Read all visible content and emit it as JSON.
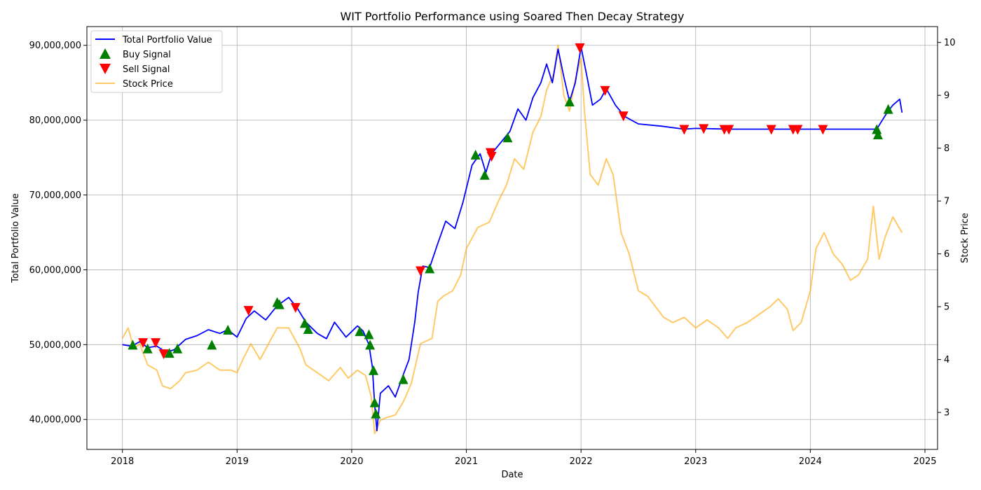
{
  "chart_data": {
    "type": "line",
    "title": "WIT Portfolio Performance using Soared Then Decay Strategy",
    "xlabel": "Date",
    "ylabel_left": "Total Portfolio Value",
    "ylabel_right": "Stock Price",
    "x_range": [
      2017.69,
      2025.11
    ],
    "y_left_range": [
      36000000,
      92500000
    ],
    "y_right_range": [
      2.3,
      10.3
    ],
    "x_ticks": [
      "2018",
      "2019",
      "2020",
      "2021",
      "2022",
      "2023",
      "2024",
      "2025"
    ],
    "y_left_ticks": [
      {
        "value": 40000000,
        "label": "40,000,000"
      },
      {
        "value": 50000000,
        "label": "50,000,000"
      },
      {
        "value": 60000000,
        "label": "60,000,000"
      },
      {
        "value": 70000000,
        "label": "70,000,000"
      },
      {
        "value": 80000000,
        "label": "80,000,000"
      },
      {
        "value": 90000000,
        "label": "90,000,000"
      }
    ],
    "y_right_ticks": [
      "3",
      "4",
      "5",
      "6",
      "7",
      "8",
      "9",
      "10"
    ],
    "grid": true,
    "legend_position": "top-left",
    "colors": {
      "portfolio": "#0000ff",
      "buy": "#008000",
      "sell": "#ff0000",
      "price": "#ffa500"
    },
    "series": [
      {
        "name": "Total Portfolio Value",
        "axis": "left",
        "points": [
          [
            2018.0,
            50000000
          ],
          [
            2018.08,
            49800000
          ],
          [
            2018.15,
            50400000
          ],
          [
            2018.22,
            49600000
          ],
          [
            2018.3,
            49800000
          ],
          [
            2018.38,
            49000000
          ],
          [
            2018.45,
            49300000
          ],
          [
            2018.55,
            50700000
          ],
          [
            2018.65,
            51200000
          ],
          [
            2018.75,
            52000000
          ],
          [
            2018.85,
            51500000
          ],
          [
            2018.92,
            52000000
          ],
          [
            2019.0,
            51000000
          ],
          [
            2019.08,
            53500000
          ],
          [
            2019.15,
            54500000
          ],
          [
            2019.25,
            53300000
          ],
          [
            2019.35,
            55200000
          ],
          [
            2019.45,
            56300000
          ],
          [
            2019.52,
            55000000
          ],
          [
            2019.6,
            53000000
          ],
          [
            2019.7,
            51500000
          ],
          [
            2019.78,
            50800000
          ],
          [
            2019.85,
            53000000
          ],
          [
            2019.95,
            51000000
          ],
          [
            2020.05,
            52500000
          ],
          [
            2020.1,
            51800000
          ],
          [
            2020.15,
            50000000
          ],
          [
            2020.18,
            47000000
          ],
          [
            2020.2,
            42000000
          ],
          [
            2020.22,
            38500000
          ],
          [
            2020.25,
            43500000
          ],
          [
            2020.32,
            44500000
          ],
          [
            2020.38,
            43000000
          ],
          [
            2020.45,
            46000000
          ],
          [
            2020.5,
            48000000
          ],
          [
            2020.55,
            53000000
          ],
          [
            2020.58,
            57000000
          ],
          [
            2020.62,
            60500000
          ],
          [
            2020.68,
            60300000
          ],
          [
            2020.75,
            63500000
          ],
          [
            2020.82,
            66500000
          ],
          [
            2020.9,
            65500000
          ],
          [
            2020.97,
            69000000
          ],
          [
            2021.05,
            74000000
          ],
          [
            2021.12,
            75500000
          ],
          [
            2021.17,
            73000000
          ],
          [
            2021.22,
            75500000
          ],
          [
            2021.3,
            77000000
          ],
          [
            2021.38,
            78500000
          ],
          [
            2021.45,
            81500000
          ],
          [
            2021.52,
            80000000
          ],
          [
            2021.58,
            83000000
          ],
          [
            2021.65,
            85000000
          ],
          [
            2021.7,
            87500000
          ],
          [
            2021.75,
            85000000
          ],
          [
            2021.8,
            89500000
          ],
          [
            2021.85,
            85800000
          ],
          [
            2021.9,
            82500000
          ],
          [
            2021.95,
            85000000
          ],
          [
            2022.0,
            89800000
          ],
          [
            2022.05,
            86000000
          ],
          [
            2022.1,
            82000000
          ],
          [
            2022.17,
            82800000
          ],
          [
            2022.22,
            84200000
          ],
          [
            2022.3,
            82000000
          ],
          [
            2022.38,
            80500000
          ],
          [
            2022.5,
            79500000
          ],
          [
            2022.7,
            79200000
          ],
          [
            2022.9,
            78800000
          ],
          [
            2023.0,
            78900000
          ],
          [
            2023.3,
            78800000
          ],
          [
            2024.0,
            78800000
          ],
          [
            2024.58,
            78800000
          ],
          [
            2024.62,
            79800000
          ],
          [
            2024.67,
            81000000
          ],
          [
            2024.72,
            82000000
          ],
          [
            2024.78,
            82800000
          ],
          [
            2024.8,
            81000000
          ]
        ]
      },
      {
        "name": "Stock Price",
        "axis": "right",
        "points": [
          [
            2018.0,
            4.4
          ],
          [
            2018.05,
            4.6
          ],
          [
            2018.1,
            4.2
          ],
          [
            2018.15,
            4.3
          ],
          [
            2018.22,
            3.9
          ],
          [
            2018.3,
            3.8
          ],
          [
            2018.35,
            3.5
          ],
          [
            2018.42,
            3.45
          ],
          [
            2018.5,
            3.6
          ],
          [
            2018.55,
            3.75
          ],
          [
            2018.65,
            3.8
          ],
          [
            2018.75,
            3.95
          ],
          [
            2018.85,
            3.8
          ],
          [
            2018.95,
            3.8
          ],
          [
            2019.0,
            3.75
          ],
          [
            2019.05,
            4.0
          ],
          [
            2019.12,
            4.3
          ],
          [
            2019.2,
            4.0
          ],
          [
            2019.3,
            4.4
          ],
          [
            2019.35,
            4.6
          ],
          [
            2019.45,
            4.6
          ],
          [
            2019.55,
            4.2
          ],
          [
            2019.6,
            3.9
          ],
          [
            2019.7,
            3.75
          ],
          [
            2019.8,
            3.6
          ],
          [
            2019.9,
            3.85
          ],
          [
            2019.97,
            3.65
          ],
          [
            2020.05,
            3.8
          ],
          [
            2020.12,
            3.7
          ],
          [
            2020.17,
            3.3
          ],
          [
            2020.2,
            2.6
          ],
          [
            2020.25,
            2.85
          ],
          [
            2020.3,
            2.9
          ],
          [
            2020.38,
            2.95
          ],
          [
            2020.45,
            3.2
          ],
          [
            2020.52,
            3.55
          ],
          [
            2020.6,
            4.3
          ],
          [
            2020.7,
            4.4
          ],
          [
            2020.75,
            5.1
          ],
          [
            2020.8,
            5.2
          ],
          [
            2020.88,
            5.3
          ],
          [
            2020.95,
            5.6
          ],
          [
            2021.0,
            6.1
          ],
          [
            2021.1,
            6.5
          ],
          [
            2021.2,
            6.6
          ],
          [
            2021.28,
            7.0
          ],
          [
            2021.35,
            7.3
          ],
          [
            2021.42,
            7.8
          ],
          [
            2021.5,
            7.6
          ],
          [
            2021.58,
            8.3
          ],
          [
            2021.65,
            8.6
          ],
          [
            2021.7,
            9.1
          ],
          [
            2021.76,
            9.4
          ],
          [
            2021.8,
            9.95
          ],
          [
            2021.85,
            9.0
          ],
          [
            2021.9,
            8.7
          ],
          [
            2021.95,
            9.3
          ],
          [
            2022.0,
            9.7
          ],
          [
            2022.03,
            8.7
          ],
          [
            2022.08,
            7.5
          ],
          [
            2022.15,
            7.3
          ],
          [
            2022.22,
            7.8
          ],
          [
            2022.28,
            7.5
          ],
          [
            2022.35,
            6.4
          ],
          [
            2022.42,
            6.0
          ],
          [
            2022.5,
            5.3
          ],
          [
            2022.58,
            5.2
          ],
          [
            2022.65,
            5.0
          ],
          [
            2022.72,
            4.8
          ],
          [
            2022.8,
            4.7
          ],
          [
            2022.9,
            4.8
          ],
          [
            2023.0,
            4.6
          ],
          [
            2023.1,
            4.75
          ],
          [
            2023.2,
            4.6
          ],
          [
            2023.28,
            4.4
          ],
          [
            2023.35,
            4.6
          ],
          [
            2023.45,
            4.7
          ],
          [
            2023.55,
            4.85
          ],
          [
            2023.65,
            5.0
          ],
          [
            2023.72,
            5.15
          ],
          [
            2023.8,
            4.95
          ],
          [
            2023.85,
            4.55
          ],
          [
            2023.92,
            4.7
          ],
          [
            2024.0,
            5.3
          ],
          [
            2024.05,
            6.1
          ],
          [
            2024.12,
            6.4
          ],
          [
            2024.2,
            6.0
          ],
          [
            2024.28,
            5.8
          ],
          [
            2024.35,
            5.5
          ],
          [
            2024.42,
            5.6
          ],
          [
            2024.5,
            5.9
          ],
          [
            2024.55,
            6.9
          ],
          [
            2024.6,
            5.9
          ],
          [
            2024.65,
            6.3
          ],
          [
            2024.72,
            6.7
          ],
          [
            2024.8,
            6.4
          ]
        ]
      }
    ],
    "buy_signals": {
      "name": "Buy Signal",
      "points": [
        [
          2018.09,
          49900000
        ],
        [
          2018.22,
          49400000
        ],
        [
          2018.41,
          48800000
        ],
        [
          2018.48,
          49400000
        ],
        [
          2018.78,
          49900000
        ],
        [
          2018.92,
          51900000
        ],
        [
          2019.35,
          55600000
        ],
        [
          2019.37,
          55300000
        ],
        [
          2019.59,
          52800000
        ],
        [
          2019.62,
          52000000
        ],
        [
          2020.07,
          51700000
        ],
        [
          2020.15,
          51300000
        ],
        [
          2020.16,
          49900000
        ],
        [
          2020.19,
          46500000
        ],
        [
          2020.2,
          42200000
        ],
        [
          2020.21,
          40700000
        ],
        [
          2020.45,
          45300000
        ],
        [
          2020.68,
          60100000
        ],
        [
          2021.08,
          75300000
        ],
        [
          2021.16,
          72600000
        ],
        [
          2021.36,
          77600000
        ],
        [
          2021.9,
          82400000
        ],
        [
          2024.58,
          78700000
        ],
        [
          2024.59,
          78000000
        ],
        [
          2024.68,
          81400000
        ]
      ]
    },
    "sell_signals": {
      "name": "Sell Signal",
      "points": [
        [
          2018.18,
          50300000
        ],
        [
          2018.29,
          50300000
        ],
        [
          2018.36,
          48800000
        ],
        [
          2019.1,
          54600000
        ],
        [
          2019.51,
          55000000
        ],
        [
          2020.6,
          59900000
        ],
        [
          2021.21,
          75700000
        ],
        [
          2021.22,
          75200000
        ],
        [
          2021.99,
          89700000
        ],
        [
          2022.21,
          84000000
        ],
        [
          2022.37,
          80600000
        ],
        [
          2022.9,
          78800000
        ],
        [
          2023.07,
          78900000
        ],
        [
          2023.25,
          78800000
        ],
        [
          2023.29,
          78800000
        ],
        [
          2023.66,
          78800000
        ],
        [
          2023.85,
          78800000
        ],
        [
          2023.89,
          78800000
        ],
        [
          2024.11,
          78800000
        ]
      ]
    }
  }
}
